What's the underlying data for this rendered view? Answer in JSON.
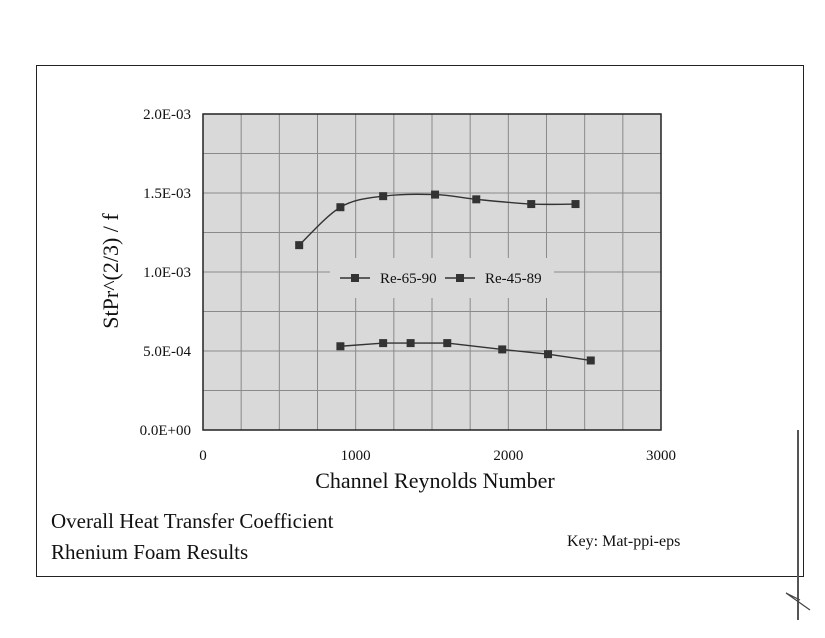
{
  "caption": {
    "line1": "Overall Heat Transfer Coefficient",
    "line2": "Rhenium Foam Results"
  },
  "key": "Key:  Mat-ppi-eps",
  "chart_data": {
    "type": "line",
    "xlabel": "Channel Reynolds Number",
    "ylabel": "StPr^(2/3) / f",
    "xlim": [
      0,
      3000
    ],
    "ylim": [
      0,
      0.002
    ],
    "x_ticks": [
      "0",
      "1000",
      "2000",
      "3000"
    ],
    "x_tick_values": [
      0,
      1000,
      2000,
      3000
    ],
    "y_ticks": [
      "0.0E+00",
      "5.0E-04",
      "1.0E-03",
      "1.5E-03",
      "2.0E-03"
    ],
    "y_tick_values": [
      0,
      0.0005,
      0.001,
      0.0015,
      0.002
    ],
    "grid": true,
    "plot_background": "#d9d9d9",
    "legend_position": "center-left",
    "series": [
      {
        "name": "Re-65-90",
        "color": "#333333",
        "marker": "square",
        "smooth": true,
        "points": [
          [
            630,
            0.00117
          ],
          [
            900,
            0.00141
          ],
          [
            1180,
            0.00148
          ],
          [
            1520,
            0.00149
          ],
          [
            1790,
            0.00146
          ],
          [
            2150,
            0.00143
          ],
          [
            2440,
            0.00143
          ]
        ]
      },
      {
        "name": "Re-45-89",
        "color": "#333333",
        "marker": "square",
        "smooth": false,
        "points": [
          [
            900,
            0.00053
          ],
          [
            1180,
            0.00055
          ],
          [
            1360,
            0.00055
          ],
          [
            1600,
            0.00055
          ],
          [
            1960,
            0.00051
          ],
          [
            2260,
            0.00048
          ],
          [
            2540,
            0.00044
          ]
        ]
      }
    ]
  }
}
